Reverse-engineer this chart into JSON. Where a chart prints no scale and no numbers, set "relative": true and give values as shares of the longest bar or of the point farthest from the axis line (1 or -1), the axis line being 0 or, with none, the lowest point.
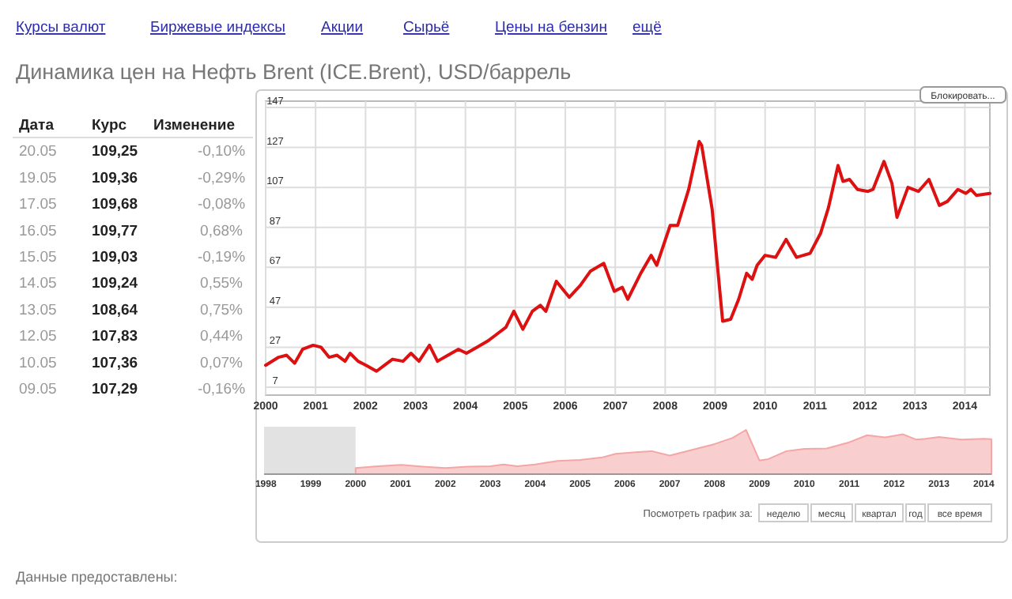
{
  "chart_data": [
    {
      "type": "other",
      "title": "Динамика цен на Нефть Brent (ICE.Brent), USD/баррель",
      "annotations": [
        "Курсы валют",
        "Биржевые индексы",
        "Акции",
        "Сырьё",
        "Цены на бензин",
        "ещё"
      ]
    },
    {
      "type": "other",
      "annotations": [
        "Дата",
        "Курс",
        "Изменение",
        "20.05",
        "109,25",
        "-0,10%",
        "19.05",
        "109,36",
        "-0,29%",
        "17.05",
        "109,68",
        "-0,08%",
        "16.05",
        "109,77",
        "0,68%",
        "15.05",
        "109,03",
        "-0,19%",
        "14.05",
        "109,24",
        "0,55%",
        "13.05",
        "108,64",
        "0,75%",
        "12.05",
        "107,83",
        "0,44%",
        "10.05",
        "107,36",
        "0,07%",
        "09.05",
        "107,29",
        "-0,16%"
      ]
    },
    {
      "type": "line",
      "grid": true,
      "xlim": [
        2000,
        2014.5
      ],
      "xticks": [
        2000,
        2001,
        2002,
        2003,
        2004,
        2005,
        2006,
        2007,
        2008,
        2009,
        2010,
        2011,
        2012,
        2013,
        2014
      ],
      "ylim": [
        7,
        147
      ],
      "yticks": [
        7,
        27,
        47,
        67,
        87,
        107,
        127,
        147
      ],
      "annotations": [
        "Блокировать...",
        "Посмотреть график за:",
        "неделю",
        "месяц",
        "квартал",
        "год",
        "все время",
        "Данные предоставлены:"
      ],
      "series": [
        {
          "color": "#dd1111",
          "x": [
            2000.0,
            2000.26,
            2000.42,
            2000.58,
            2000.74,
            2000.95,
            2001.11,
            2001.27,
            2001.43,
            2001.59,
            2001.69,
            2001.85,
            2002.01,
            2002.22,
            2002.38,
            2002.54,
            2002.75,
            2002.91,
            2003.07,
            2003.28,
            2003.44,
            2003.65,
            2003.86,
            2004.02,
            2004.23,
            2004.44,
            2004.6,
            2004.81,
            2004.97,
            2005.15,
            2005.34,
            2005.5,
            2005.61,
            2005.82,
            2006.08,
            2006.3,
            2006.5,
            2006.77,
            2006.98,
            2007.14,
            2007.25,
            2007.51,
            2007.72,
            2007.83,
            2008.1,
            2008.25,
            2008.47,
            2008.68,
            2008.73,
            2008.94,
            2009.15,
            2009.31,
            2009.47,
            2009.63,
            2009.74,
            2009.84,
            2010.0,
            2010.21,
            2010.42,
            2010.63,
            2010.9,
            2011.11,
            2011.27,
            2011.46,
            2011.56,
            2011.69,
            2011.85,
            2012.06,
            2012.16,
            2012.38,
            2012.54,
            2012.64,
            2012.86,
            2013.07,
            2013.28,
            2013.49,
            2013.65,
            2013.86,
            2014.02,
            2014.12,
            2014.23,
            2014.5
          ],
          "values": [
            18,
            22,
            23,
            19,
            26,
            28,
            27,
            22,
            23,
            20,
            24,
            20,
            18,
            15,
            18,
            21,
            20,
            24,
            20,
            28,
            20,
            23,
            26,
            24,
            27,
            30,
            33,
            37,
            45,
            36,
            45,
            48,
            45,
            60,
            52,
            58,
            65,
            69,
            55,
            57,
            51,
            64,
            73,
            68,
            88,
            88,
            106,
            130,
            128,
            96,
            40,
            41,
            51,
            64,
            61,
            68,
            73,
            72,
            81,
            72,
            74,
            84,
            97,
            118,
            110,
            111,
            106,
            105,
            106,
            120,
            109,
            92,
            107,
            105,
            111,
            98,
            100,
            106,
            104,
            106,
            103,
            104
          ]
        }
      ]
    },
    {
      "type": "area",
      "relative": true,
      "tick_labels": "x",
      "xlim": [
        1997.96,
        2014.17
      ],
      "xticks": [
        1998,
        1999,
        2000,
        2001,
        2002,
        2003,
        2004,
        2005,
        2006,
        2007,
        2008,
        2009,
        2010,
        2011,
        2012,
        2013,
        2014
      ],
      "bands": [
        {
          "axis": "x",
          "from": 1997.96,
          "to": 2000,
          "color": "#e2e2e2"
        }
      ],
      "series": [
        {
          "color": "#f4a6a6",
          "x": [
            2000.0,
            2000.5,
            2001.0,
            2001.5,
            2002.0,
            2002.5,
            2003.0,
            2003.3,
            2003.6,
            2004.0,
            2004.5,
            2005.0,
            2005.5,
            2005.8,
            2006.3,
            2006.6,
            2007.0,
            2007.5,
            2008.0,
            2008.4,
            2008.7,
            2009.0,
            2009.2,
            2009.6,
            2010.0,
            2010.5,
            2011.0,
            2011.4,
            2011.8,
            2012.2,
            2012.5,
            2012.7,
            2013.0,
            2013.5,
            2014.0,
            2014.17
          ],
          "values": [
            0.14,
            0.18,
            0.21,
            0.17,
            0.14,
            0.17,
            0.18,
            0.22,
            0.18,
            0.22,
            0.3,
            0.32,
            0.38,
            0.46,
            0.5,
            0.52,
            0.42,
            0.55,
            0.68,
            0.82,
            1.0,
            0.31,
            0.34,
            0.52,
            0.57,
            0.58,
            0.72,
            0.88,
            0.83,
            0.9,
            0.78,
            0.8,
            0.84,
            0.78,
            0.8,
            0.79
          ]
        }
      ]
    }
  ]
}
